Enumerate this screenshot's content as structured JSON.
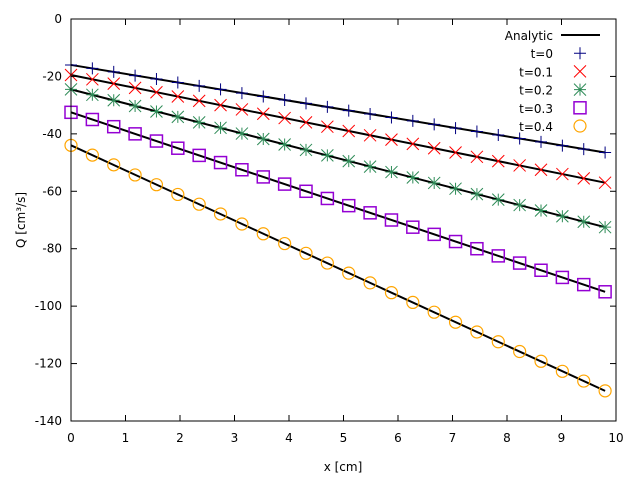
{
  "chart_data": {
    "type": "line",
    "xlabel": "x [cm]",
    "ylabel": "Q [cm³/s]",
    "xlim": [
      0,
      10
    ],
    "ylim": [
      -140,
      0
    ],
    "xticks": [
      0,
      1,
      2,
      3,
      4,
      5,
      6,
      7,
      8,
      9,
      10
    ],
    "yticks": [
      0,
      -20,
      -40,
      -60,
      -80,
      -100,
      -120,
      -140
    ],
    "grid": false,
    "legend_position": "top-right",
    "analytic": {
      "name": "Analytic",
      "color": "#000000",
      "x": [
        0,
        9.8
      ],
      "lines": [
        [
          -16,
          -46.5
        ],
        [
          -19.5,
          -57
        ],
        [
          -24.5,
          -72.5
        ],
        [
          -32.5,
          -95
        ],
        [
          -44,
          -129.5
        ]
      ]
    },
    "x": [
      0,
      0.392,
      0.784,
      1.176,
      1.568,
      1.96,
      2.352,
      2.744,
      3.136,
      3.528,
      3.92,
      4.312,
      4.704,
      5.096,
      5.488,
      5.88,
      6.272,
      6.664,
      7.056,
      7.448,
      7.84,
      8.232,
      8.624,
      9.016,
      9.408,
      9.8
    ],
    "series": [
      {
        "name": "t=0",
        "marker": "plus",
        "color": "#000080",
        "values": [
          -16,
          -17.2,
          -18.4,
          -19.7,
          -20.9,
          -22.1,
          -23.3,
          -24.5,
          -25.8,
          -27.0,
          -28.2,
          -29.4,
          -30.6,
          -31.9,
          -33.1,
          -34.3,
          -35.5,
          -36.7,
          -38.0,
          -39.2,
          -40.4,
          -41.6,
          -42.8,
          -44.1,
          -45.3,
          -46.5
        ]
      },
      {
        "name": "t=0.1",
        "marker": "cross",
        "color": "#ff0000",
        "values": [
          -19.5,
          -21,
          -22.5,
          -24,
          -25.5,
          -27,
          -28.5,
          -30,
          -31.5,
          -33,
          -34.5,
          -36,
          -37.5,
          -39,
          -40.5,
          -42,
          -43.5,
          -45,
          -46.5,
          -48,
          -49.5,
          -51,
          -52.5,
          -54,
          -55.5,
          -57
        ]
      },
      {
        "name": "t=0.2",
        "marker": "star",
        "color": "#2e8b57",
        "values": [
          -24.5,
          -26.4,
          -28.3,
          -30.3,
          -32.2,
          -34.1,
          -36.0,
          -37.9,
          -39.9,
          -41.8,
          -43.7,
          -45.6,
          -47.5,
          -49.5,
          -51.4,
          -53.3,
          -55.2,
          -57.1,
          -59.1,
          -61.0,
          -62.9,
          -64.8,
          -66.7,
          -68.7,
          -70.6,
          -72.5
        ]
      },
      {
        "name": "t=0.3",
        "marker": "square",
        "color": "#9400d3",
        "values": [
          -32.5,
          -35,
          -37.5,
          -40,
          -42.5,
          -45,
          -47.5,
          -50,
          -52.5,
          -55,
          -57.5,
          -60,
          -62.5,
          -65,
          -67.5,
          -70,
          -72.5,
          -75,
          -77.5,
          -80,
          -82.5,
          -85,
          -87.5,
          -90,
          -92.5,
          -95
        ]
      },
      {
        "name": "t=0.4",
        "marker": "circle",
        "color": "#ffa500",
        "values": [
          -44,
          -47.4,
          -50.8,
          -54.3,
          -57.7,
          -61.1,
          -64.5,
          -67.9,
          -71.4,
          -74.8,
          -78.2,
          -81.6,
          -85.0,
          -88.5,
          -91.9,
          -95.3,
          -98.7,
          -102.1,
          -105.6,
          -109.0,
          -112.4,
          -115.8,
          -119.2,
          -122.7,
          -126.1,
          -129.5
        ]
      }
    ]
  }
}
